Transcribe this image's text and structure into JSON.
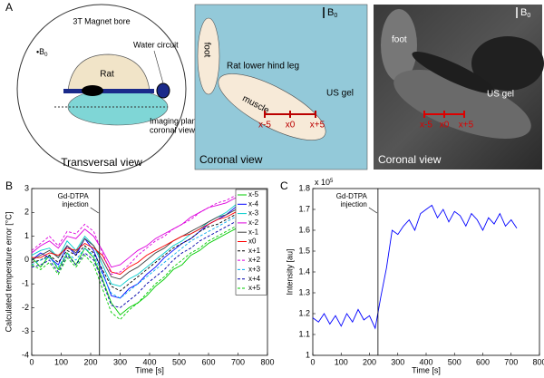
{
  "panel_labels": [
    "A",
    "B",
    "C"
  ],
  "diagram": {
    "transversal": {
      "bore": "3T Magnet bore",
      "b0": {
        "letter": "B",
        "subscript": "0"
      },
      "rat": "Rat",
      "water": "Water circuit",
      "plane": [
        "Imaging plane",
        "coronal view"
      ],
      "caption": "Transversal view"
    },
    "coronal": {
      "b0": {
        "letter": "B",
        "subscript": "0"
      },
      "foot": "foot",
      "leg": "Rat lower hind leg",
      "muscle": "muscle",
      "gel": "US gel",
      "positions": [
        "x-5",
        "x0",
        "x+5"
      ],
      "caption": "Coronal view"
    },
    "mri": {
      "b0": {
        "letter": "B",
        "subscript": "0"
      },
      "foot": "foot",
      "gel": "US gel",
      "positions": [
        "x-5",
        "x0",
        "x+5"
      ],
      "caption": "Coronal view"
    }
  },
  "chart_data": [
    {
      "type": "line",
      "xlabel": "Time [s]",
      "ylabel": "Calculated temperature error [°C]",
      "xlim": [
        0,
        800
      ],
      "xticks": [
        0,
        100,
        200,
        300,
        400,
        500,
        600,
        700,
        800
      ],
      "ylim": [
        -4,
        3
      ],
      "yticks": [
        -4,
        -3,
        -2,
        -1,
        0,
        1,
        2,
        3
      ],
      "annotation": {
        "text": [
          "Gd-DTPA",
          "injection"
        ],
        "x": 230
      },
      "legend": "upper right",
      "x": [
        0,
        30,
        60,
        90,
        120,
        150,
        180,
        210,
        240,
        270,
        300,
        330,
        360,
        390,
        420,
        450,
        480,
        510,
        540,
        570,
        600,
        630,
        660,
        690,
        720
      ],
      "series": [
        {
          "name": "x-5",
          "color": "#00cc00",
          "dashed": false,
          "values": [
            0.1,
            -0.3,
            0.2,
            -0.4,
            0.3,
            -0.2,
            0.5,
            0.1,
            -0.8,
            -1.8,
            -2.3,
            -2.0,
            -1.8,
            -1.5,
            -1.1,
            -0.8,
            -0.4,
            -0.2,
            0.2,
            0.4,
            0.7,
            0.9,
            1.1,
            1.3,
            1.5
          ]
        },
        {
          "name": "x-4",
          "color": "#0000ff",
          "dashed": false,
          "values": [
            0,
            0.3,
            0.1,
            -0.2,
            0.6,
            0.2,
            0.9,
            0.4,
            -0.5,
            -1.5,
            -1.6,
            -1.2,
            -1.0,
            -0.6,
            -0.3,
            0.1,
            0.4,
            0.7,
            0.9,
            1.2,
            1.5,
            1.7,
            1.9,
            2.2,
            2.4
          ]
        },
        {
          "name": "x-3",
          "color": "#00cccc",
          "dashed": false,
          "values": [
            0.2,
            0.4,
            0.5,
            0.1,
            0.8,
            0.4,
            1.0,
            0.6,
            -0.2,
            -1.0,
            -1.1,
            -0.8,
            -0.6,
            -0.3,
            0,
            0.3,
            0.6,
            0.8,
            1.1,
            1.3,
            1.6,
            1.8,
            2.0,
            2.3,
            2.5
          ]
        },
        {
          "name": "x-2",
          "color": "#dd00dd",
          "dashed": false,
          "values": [
            0.3,
            0.6,
            0.8,
            0.5,
            1.0,
            0.9,
            1.3,
            1.0,
            0.4,
            -0.3,
            -0.2,
            0.1,
            0.4,
            0.6,
            0.9,
            1.1,
            1.3,
            1.5,
            1.8,
            2.0,
            2.2,
            2.3,
            2.4,
            2.6,
            2.7
          ]
        },
        {
          "name": "x-1",
          "color": "#404040",
          "dashed": false,
          "values": [
            0,
            0.2,
            0.4,
            0.1,
            0.6,
            0.3,
            0.9,
            0.6,
            0,
            -0.7,
            -0.8,
            -0.5,
            -0.3,
            0,
            0.3,
            0.5,
            0.8,
            1.0,
            1.2,
            1.4,
            1.6,
            1.8,
            1.9,
            2.1,
            2.2
          ]
        },
        {
          "name": "x0",
          "color": "#ff0000",
          "dashed": false,
          "values": [
            0.1,
            0.1,
            0.3,
            0.2,
            0.5,
            0.4,
            0.7,
            0.5,
            0.2,
            -0.5,
            -0.6,
            -0.3,
            -0.1,
            0.2,
            0.4,
            0.6,
            0.8,
            1.0,
            1.1,
            1.3,
            1.5,
            1.7,
            1.8,
            2.0,
            2.1
          ]
        },
        {
          "name": "x+1",
          "color": "#000000",
          "dashed": true,
          "values": [
            -0.1,
            0,
            0.2,
            -0.1,
            0.4,
            0.2,
            0.6,
            0.3,
            -0.4,
            -1.1,
            -1.3,
            -1.0,
            -0.7,
            -0.4,
            -0.1,
            0.2,
            0.5,
            0.7,
            0.9,
            1.2,
            1.4,
            1.5,
            1.7,
            1.9,
            2.0
          ]
        },
        {
          "name": "x+2",
          "color": "#dd00dd",
          "dashed": true,
          "values": [
            0.4,
            0.7,
            1.0,
            0.6,
            1.2,
            1.1,
            1.5,
            1.2,
            0.3,
            -0.6,
            -0.5,
            -0.2,
            0.2,
            0.5,
            0.8,
            1.0,
            1.3,
            1.5,
            1.7,
            2.0,
            2.2,
            2.4,
            2.5,
            2.7,
            2.8
          ]
        },
        {
          "name": "x+3",
          "color": "#00aaee",
          "dashed": true,
          "values": [
            -0.2,
            0,
            0.1,
            -0.3,
            0.3,
            0,
            0.5,
            0.2,
            -0.6,
            -1.4,
            -1.6,
            -1.3,
            -1.0,
            -0.7,
            -0.4,
            -0.1,
            0.2,
            0.5,
            0.8,
            1.0,
            1.2,
            1.4,
            1.6,
            1.8,
            2.0
          ]
        },
        {
          "name": "x+4",
          "color": "#0000aa",
          "dashed": true,
          "values": [
            -0.3,
            -0.2,
            0,
            -0.5,
            0.2,
            -0.2,
            0.3,
            0,
            -0.9,
            -1.9,
            -2.0,
            -1.7,
            -1.4,
            -1.0,
            -0.7,
            -0.4,
            0,
            0.3,
            0.5,
            0.8,
            1.0,
            1.2,
            1.4,
            1.6,
            1.8
          ]
        },
        {
          "name": "x+5",
          "color": "#00cc00",
          "dashed": true,
          "values": [
            -0.2,
            -0.4,
            -0.1,
            -0.6,
            0.1,
            -0.3,
            0.2,
            -0.2,
            -1.2,
            -2.2,
            -2.5,
            -2.1,
            -1.8,
            -1.4,
            -1.0,
            -0.7,
            -0.3,
            0,
            0.3,
            0.5,
            0.8,
            1.0,
            1.2,
            1.4,
            1.6
          ]
        }
      ]
    },
    {
      "type": "line",
      "xlabel": "Time [s]",
      "ylabel": "Intensity [au]",
      "y_multiplier": {
        "base": "x 10",
        "exponent": "5"
      },
      "xlim": [
        0,
        800
      ],
      "xticks": [
        0,
        100,
        200,
        300,
        400,
        500,
        600,
        700,
        800
      ],
      "ylim": [
        1,
        1.8
      ],
      "yticks": [
        1,
        1.1,
        1.2,
        1.3,
        1.4,
        1.5,
        1.6,
        1.7,
        1.8
      ],
      "annotation": {
        "text": [
          "Gd-DTPA",
          "injection"
        ],
        "x": 230
      },
      "x": [
        0,
        20,
        40,
        60,
        80,
        100,
        120,
        140,
        160,
        180,
        200,
        220,
        240,
        260,
        280,
        300,
        320,
        340,
        360,
        380,
        400,
        420,
        440,
        460,
        480,
        500,
        520,
        540,
        560,
        580,
        600,
        620,
        640,
        660,
        680,
        700,
        720
      ],
      "series": [
        {
          "color": "#0000ff",
          "dashed": false,
          "values": [
            1.18,
            1.16,
            1.2,
            1.15,
            1.19,
            1.14,
            1.2,
            1.16,
            1.22,
            1.17,
            1.19,
            1.13,
            1.28,
            1.42,
            1.6,
            1.58,
            1.62,
            1.65,
            1.6,
            1.68,
            1.7,
            1.72,
            1.66,
            1.7,
            1.64,
            1.69,
            1.67,
            1.62,
            1.68,
            1.65,
            1.6,
            1.66,
            1.63,
            1.68,
            1.62,
            1.65,
            1.61
          ]
        }
      ]
    }
  ]
}
